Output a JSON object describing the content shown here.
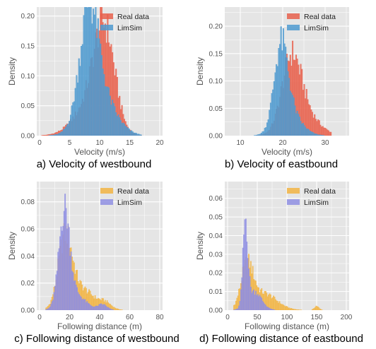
{
  "chart_data": [
    {
      "type": "histogram",
      "caption": "a) Velocity of westbound",
      "xlabel": "Velocity (m/s)",
      "ylabel": "Density",
      "xlim": [
        0,
        20
      ],
      "ylim": [
        0,
        0.215
      ],
      "xticks": [
        "0",
        "5",
        "10",
        "15",
        "20"
      ],
      "yticks": [
        "0.00",
        "0.05",
        "0.10",
        "0.15",
        "0.20"
      ],
      "grid": true,
      "legend_position": "top-right",
      "bin_range": [
        0.3,
        17
      ],
      "bin_count": 84,
      "series": [
        {
          "name": "Real data",
          "color": "#e8604c",
          "peaks": [
            {
              "center": 10.8,
              "sd": 1.7,
              "height": 0.155
            },
            {
              "center": 8.5,
              "sd": 2.7,
              "height": 0.05
            }
          ]
        },
        {
          "name": "LimSim",
          "color": "#4e9ad0",
          "peaks": [
            {
              "center": 8.2,
              "sd": 1.5,
              "height": 0.165
            },
            {
              "center": 9.8,
              "sd": 2.6,
              "height": 0.07
            }
          ]
        }
      ]
    },
    {
      "type": "histogram",
      "caption": "b) Velocity of eastbound",
      "xlabel": "Velocity (m/s)",
      "ylabel": "Density",
      "xlim": [
        7,
        35
      ],
      "ylim": [
        0,
        0.235
      ],
      "xticks": [
        "10",
        "20",
        "30"
      ],
      "yticks": [
        "0.00",
        "0.05",
        "0.10",
        "0.15",
        "0.20"
      ],
      "grid": true,
      "legend_position": "top-right",
      "bin_range": [
        8,
        31.5
      ],
      "bin_count": 86,
      "series": [
        {
          "name": "Real data",
          "color": "#e8604c",
          "peaks": [
            {
              "center": 22.0,
              "sd": 2.2,
              "height": 0.115
            },
            {
              "center": 24.5,
              "sd": 3.5,
              "height": 0.045
            }
          ]
        },
        {
          "name": "LimSim",
          "color": "#4e9ad0",
          "peaks": [
            {
              "center": 19.6,
              "sd": 1.6,
              "height": 0.14
            },
            {
              "center": 21.5,
              "sd": 2.8,
              "height": 0.04
            }
          ]
        }
      ]
    },
    {
      "type": "histogram",
      "caption": "c) Following distance of westbound",
      "xlabel": "Following distance (m)",
      "ylabel": "Density",
      "xlim": [
        0,
        80
      ],
      "ylim": [
        0,
        0.095
      ],
      "xticks": [
        "0",
        "20",
        "40",
        "60",
        "80"
      ],
      "yticks": [
        "0.00",
        "0.02",
        "0.04",
        "0.06",
        "0.08"
      ],
      "grid": true,
      "legend_position": "top-right",
      "bin_range": [
        4,
        60
      ],
      "bin_count": 84,
      "series": [
        {
          "name": "Real data",
          "color": "#f2b443",
          "peaks": [
            {
              "center": 17,
              "sd": 4.5,
              "height": 0.048
            },
            {
              "center": 27,
              "sd": 9,
              "height": 0.016
            },
            {
              "center": 44,
              "sd": 4,
              "height": 0.004
            }
          ]
        },
        {
          "name": "LimSim",
          "color": "#8f8fe3",
          "peaks": [
            {
              "center": 16.5,
              "sd": 3.5,
              "height": 0.068
            },
            {
              "center": 23,
              "sd": 7,
              "height": 0.012
            },
            {
              "center": 42,
              "sd": 3,
              "height": 0.004
            }
          ]
        }
      ]
    },
    {
      "type": "histogram",
      "caption": "d) Following distance of eastbound",
      "xlabel": "Following distance (m)",
      "ylabel": "Density",
      "xlim": [
        0,
        200
      ],
      "ylim": [
        0,
        0.069
      ],
      "xticks": [
        "0",
        "50",
        "100",
        "150",
        "200"
      ],
      "yticks": [
        "0.00",
        "0.01",
        "0.02",
        "0.03",
        "0.04",
        "0.05",
        "0.06"
      ],
      "grid": true,
      "legend_position": "top-right",
      "bin_range": [
        10,
        160
      ],
      "bin_count": 90,
      "series": [
        {
          "name": "Real data",
          "color": "#f2b443",
          "peaks": [
            {
              "center": 33,
              "sd": 10,
              "height": 0.022
            },
            {
              "center": 60,
              "sd": 22,
              "height": 0.009
            },
            {
              "center": 150,
              "sd": 4,
              "height": 0.002
            }
          ]
        },
        {
          "name": "LimSim",
          "color": "#8f8fe3",
          "peaks": [
            {
              "center": 30,
              "sd": 4,
              "height": 0.045
            },
            {
              "center": 45,
              "sd": 12,
              "height": 0.01
            }
          ]
        }
      ]
    }
  ]
}
